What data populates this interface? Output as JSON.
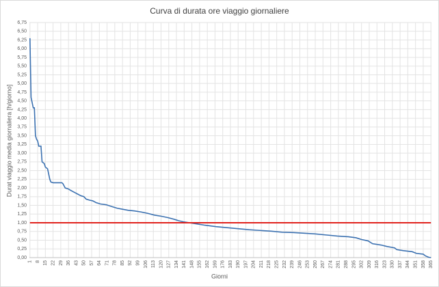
{
  "chart_data": {
    "type": "line",
    "title": "Curva di durata ore viaggio giornaliere",
    "x_label": "Giorni",
    "y_label": "Durat viaggio media giornaliera [h/giorno]",
    "series": [
      {
        "color": "#3a70b0",
        "x": [
          1,
          2,
          3,
          4,
          5,
          6,
          7,
          8,
          9,
          11,
          12,
          14,
          15,
          17,
          18,
          19,
          20,
          22,
          30,
          31,
          33,
          36,
          38,
          41,
          44,
          47,
          50,
          52,
          55,
          58,
          61,
          65,
          70,
          75,
          80,
          85,
          90,
          96,
          102,
          108,
          114,
          120,
          126,
          132,
          136,
          140,
          146,
          152,
          160,
          170,
          180,
          190,
          200,
          210,
          220,
          230,
          240,
          250,
          260,
          270,
          280,
          290,
          297,
          302,
          308,
          312,
          320,
          325,
          332,
          334,
          340,
          348,
          352,
          358,
          360,
          363,
          365
        ],
        "values": [
          6.3,
          4.6,
          4.45,
          4.3,
          4.3,
          3.5,
          3.4,
          3.35,
          3.2,
          3.2,
          2.75,
          2.7,
          2.6,
          2.55,
          2.4,
          2.25,
          2.17,
          2.15,
          2.15,
          2.12,
          2.0,
          1.97,
          1.93,
          1.88,
          1.83,
          1.78,
          1.75,
          1.68,
          1.65,
          1.63,
          1.58,
          1.54,
          1.52,
          1.47,
          1.42,
          1.39,
          1.36,
          1.34,
          1.31,
          1.27,
          1.22,
          1.19,
          1.15,
          1.1,
          1.06,
          1.03,
          1.0,
          0.97,
          0.93,
          0.89,
          0.86,
          0.83,
          0.8,
          0.78,
          0.76,
          0.73,
          0.72,
          0.7,
          0.68,
          0.65,
          0.62,
          0.6,
          0.57,
          0.52,
          0.48,
          0.4,
          0.36,
          0.32,
          0.28,
          0.23,
          0.2,
          0.17,
          0.12,
          0.1,
          0.05,
          0.01,
          0.0
        ]
      },
      {
        "color": "#e0201b",
        "x": [
          1,
          365
        ],
        "values": [
          1.0,
          1.0
        ]
      }
    ],
    "xlim": [
      0.5,
      365.5
    ],
    "xticks": [
      1,
      8,
      15,
      22,
      29,
      36,
      43,
      50,
      57,
      64,
      71,
      78,
      85,
      92,
      99,
      106,
      113,
      120,
      127,
      134,
      141,
      148,
      155,
      162,
      169,
      176,
      183,
      190,
      197,
      204,
      211,
      218,
      225,
      232,
      239,
      246,
      253,
      260,
      267,
      274,
      281,
      288,
      295,
      302,
      309,
      316,
      323,
      330,
      337,
      344,
      351,
      358,
      365
    ],
    "ylim": [
      0,
      6.75
    ],
    "yticks": [
      {
        "value": 0,
        "label": "0,00"
      },
      {
        "value": 0.25,
        "label": "0,25"
      },
      {
        "value": 0.5,
        "label": "0,50"
      },
      {
        "value": 0.75,
        "label": "0,75"
      },
      {
        "value": 1,
        "label": "1,00"
      },
      {
        "value": 1.25,
        "label": "1,25"
      },
      {
        "value": 1.5,
        "label": "1,50"
      },
      {
        "value": 1.75,
        "label": "1,75"
      },
      {
        "value": 2,
        "label": "2,00"
      },
      {
        "value": 2.25,
        "label": "2,25"
      },
      {
        "value": 2.5,
        "label": "2,50"
      },
      {
        "value": 2.75,
        "label": "2,75"
      },
      {
        "value": 3,
        "label": "3,00"
      },
      {
        "value": 3.25,
        "label": "3,25"
      },
      {
        "value": 3.5,
        "label": "3,50"
      },
      {
        "value": 3.75,
        "label": "3,75"
      },
      {
        "value": 4,
        "label": "4,00"
      },
      {
        "value": 4.25,
        "label": "4,25"
      },
      {
        "value": 4.5,
        "label": "4,50"
      },
      {
        "value": 4.75,
        "label": "4,75"
      },
      {
        "value": 5,
        "label": "5,00"
      },
      {
        "value": 5.25,
        "label": "5,25"
      },
      {
        "value": 5.5,
        "label": "5,50"
      },
      {
        "value": 5.75,
        "label": "5,75"
      },
      {
        "value": 6,
        "label": "6,00"
      },
      {
        "value": 6.25,
        "label": "6,25"
      },
      {
        "value": 6.5,
        "label": "6,50"
      },
      {
        "value": 6.75,
        "label": "6,75"
      }
    ],
    "grid": true
  }
}
